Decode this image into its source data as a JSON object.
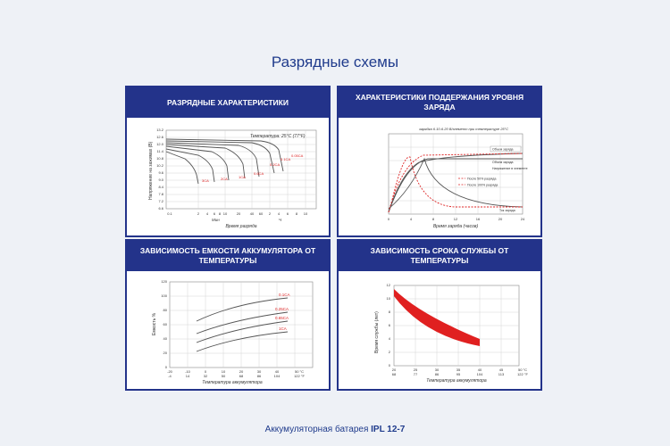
{
  "title": "Разрядные схемы",
  "footer": {
    "prefix": "Аккумуляторная батарея ",
    "model": "IPL 12-7"
  },
  "panels": [
    {
      "header": "РАЗРЯДНЫЕ ХАРАКТЕРИСТИКИ",
      "temp_note": "Температура: 25°C (77°F)",
      "ylabel": "Напряжение на зажимах (В)",
      "xlabel": "Время разряда",
      "min_label": "Мин",
      "hour_label": "Ч",
      "yticks": [
        "6.6",
        "7.2",
        "7.8",
        "8.4",
        "9.0",
        "9.6",
        "10.2",
        "10.8",
        "11.4",
        "12.0",
        "12.6",
        "13.2"
      ],
      "xticks": [
        "0.1",
        "2",
        "4",
        "6",
        "8",
        "10",
        "20",
        "40",
        "60",
        "2",
        "4",
        "6",
        "8",
        "10"
      ],
      "curve_labels": [
        "0.05CA",
        "0.1CA",
        "0.2CA",
        "0.6CA",
        "1CA",
        "2CA",
        "3CA"
      ]
    },
    {
      "header": "ХАРАКТЕРИСТИКИ ПОДДЕРЖАНИЯ УРОВНЯ ЗАРЯДА",
      "note": "зарядка 6.10-6.20 В/элемент при температуре 25°С",
      "xlabel": "Время заряда (часов)",
      "xticks": [
        "0",
        "4",
        "8",
        "12",
        "16",
        "20",
        "24"
      ],
      "legend": [
        "После 50% разряда",
        "После 100% разряда"
      ],
      "labels": [
        "Объем заряда",
        "Объем заряда",
        "Напряжение в элементе",
        "Ток заряда"
      ]
    },
    {
      "header": "ЗАВИСИМОСТЬ ЕМКОСТИ АККУМУЛЯТОРА ОТ ТЕМПЕРАТУРЫ",
      "ylabel": "Емкость %",
      "xlabel": "Температура аккумулятора",
      "yticks": [
        "0",
        "20",
        "40",
        "60",
        "80",
        "100",
        "120"
      ],
      "xticks_c": [
        "-20",
        "-10",
        "0",
        "10",
        "20",
        "30",
        "40",
        "50 °C"
      ],
      "xticks_f": [
        "-4",
        "14",
        "32",
        "50",
        "68",
        "86",
        "104",
        "122 °F"
      ],
      "curve_labels": [
        "0.1CA",
        "0.25CA",
        "0.65CA",
        "1CA"
      ]
    },
    {
      "header": "ЗАВИСИМОСТЬ СРОКА СЛУЖБЫ ОТ ТЕМПЕРАТУРЫ",
      "ylabel": "Время службы (лет)",
      "xlabel": "Температура аккумулятора",
      "yticks": [
        "0",
        "2",
        "4",
        "6",
        "8",
        "10",
        "12"
      ],
      "xticks_c": [
        "20",
        "25",
        "30",
        "35",
        "40",
        "45",
        "50 °C"
      ],
      "xticks_f": [
        "68",
        "77",
        "86",
        "95",
        "104",
        "113",
        "122 °F"
      ]
    }
  ]
}
